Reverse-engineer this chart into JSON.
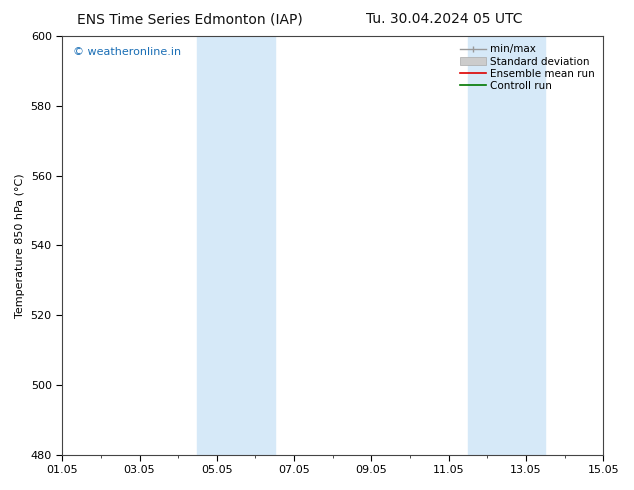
{
  "title_left": "ENS Time Series Edmonton (IAP)",
  "title_right": "Tu. 30.04.2024 05 UTC",
  "ylabel": "Temperature 850 hPa (°C)",
  "ylim": [
    480,
    600
  ],
  "yticks": [
    480,
    500,
    520,
    540,
    560,
    580,
    600
  ],
  "xlim": [
    0,
    14
  ],
  "xtick_positions": [
    0,
    2,
    4,
    6,
    8,
    10,
    12,
    14
  ],
  "xtick_labels": [
    "01.05",
    "03.05",
    "05.05",
    "07.05",
    "09.05",
    "11.05",
    "13.05",
    "15.05"
  ],
  "shaded_bands": [
    {
      "x_start": 3.5,
      "x_end": 5.5
    },
    {
      "x_start": 10.5,
      "x_end": 12.5
    }
  ],
  "band_color": "#d6e9f8",
  "background_color": "#ffffff",
  "watermark": "© weatheronline.in",
  "watermark_color": "#1a6eb5",
  "legend_items": [
    {
      "label": "min/max",
      "color": "#aaaaaa"
    },
    {
      "label": "Standard deviation",
      "color": "#cccccc"
    },
    {
      "label": "Ensemble mean run",
      "color": "#dd0000"
    },
    {
      "label": "Controll run",
      "color": "#007700"
    }
  ],
  "title_fontsize": 10,
  "ylabel_fontsize": 8,
  "tick_fontsize": 8,
  "legend_fontsize": 7.5,
  "watermark_fontsize": 8
}
